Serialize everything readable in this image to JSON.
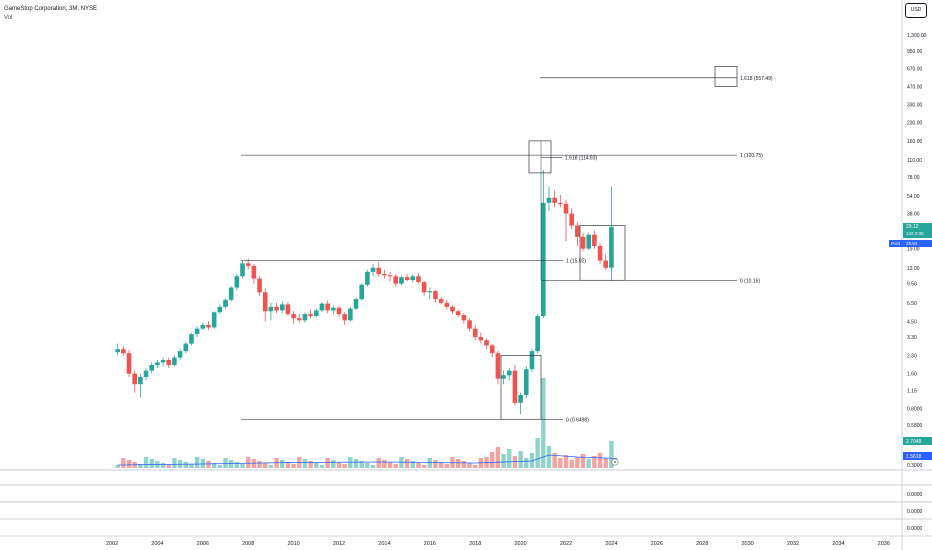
{
  "header": {
    "title": "GameStop Corporation, 3M, NYSE",
    "volume_label": "Vol",
    "currency": "USD"
  },
  "colors": {
    "up": "#26a69a",
    "down": "#ef5350",
    "up_volume": "#8fd3cc",
    "down_volume": "#f4a3a1",
    "volume_ma": "#2962ff",
    "drawing": "#131722",
    "grid": "#d1d4dc",
    "price_badge": "#26a69a",
    "post_badge": "#2962ff"
  },
  "chart_data": {
    "type": "candlestick",
    "scale": "log",
    "x_ticks": [
      "2002",
      "2004",
      "2006",
      "2008",
      "2010",
      "2012",
      "2014",
      "2016",
      "2018",
      "2020",
      "2022",
      "2024",
      "2026",
      "2028",
      "2030",
      "2032",
      "2034",
      "2036"
    ],
    "y_ticks": [
      "1,300.00",
      "950.00",
      "670.00",
      "470.00",
      "330.00",
      "230.00",
      "160.00",
      "110.00",
      "78.00",
      "54.00",
      "38.00",
      "27.00",
      "19.00",
      "13.00",
      "9.50",
      "6.50",
      "4.50",
      "3.30",
      "2.30",
      "1.60",
      "1.15",
      "0.8000",
      "0.5800"
    ],
    "volume_axis_ticks": [
      "0.3000"
    ],
    "indicator_axis_ticks": [
      "0.0000",
      "0.0000",
      "0.0000"
    ],
    "candles": [
      {
        "t": 2002.25,
        "o": 2.45,
        "h": 2.9,
        "l": 2.3,
        "c": 2.6
      },
      {
        "t": 2002.5,
        "o": 2.6,
        "h": 2.75,
        "l": 2.3,
        "c": 2.4
      },
      {
        "t": 2002.75,
        "o": 2.4,
        "h": 2.55,
        "l": 1.5,
        "c": 1.6
      },
      {
        "t": 2003.0,
        "o": 1.6,
        "h": 1.7,
        "l": 1.1,
        "c": 1.3
      },
      {
        "t": 2003.25,
        "o": 1.3,
        "h": 1.6,
        "l": 1.0,
        "c": 1.5
      },
      {
        "t": 2003.5,
        "o": 1.5,
        "h": 1.8,
        "l": 1.4,
        "c": 1.7
      },
      {
        "t": 2003.75,
        "o": 1.7,
        "h": 2.0,
        "l": 1.6,
        "c": 1.9
      },
      {
        "t": 2004.0,
        "o": 1.9,
        "h": 2.1,
        "l": 1.8,
        "c": 2.0
      },
      {
        "t": 2004.25,
        "o": 2.0,
        "h": 2.2,
        "l": 1.85,
        "c": 2.1
      },
      {
        "t": 2004.5,
        "o": 2.1,
        "h": 2.2,
        "l": 1.8,
        "c": 1.9
      },
      {
        "t": 2004.75,
        "o": 1.9,
        "h": 2.3,
        "l": 1.85,
        "c": 2.2
      },
      {
        "t": 2005.0,
        "o": 2.2,
        "h": 2.6,
        "l": 2.1,
        "c": 2.5
      },
      {
        "t": 2005.25,
        "o": 2.5,
        "h": 3.0,
        "l": 2.4,
        "c": 2.9
      },
      {
        "t": 2005.5,
        "o": 2.9,
        "h": 3.6,
        "l": 2.8,
        "c": 3.5
      },
      {
        "t": 2005.75,
        "o": 3.5,
        "h": 4.1,
        "l": 3.3,
        "c": 3.9
      },
      {
        "t": 2006.0,
        "o": 3.9,
        "h": 4.4,
        "l": 3.8,
        "c": 4.2
      },
      {
        "t": 2006.25,
        "o": 4.2,
        "h": 4.5,
        "l": 3.8,
        "c": 4.0
      },
      {
        "t": 2006.5,
        "o": 4.0,
        "h": 5.5,
        "l": 3.9,
        "c": 5.4
      },
      {
        "t": 2006.75,
        "o": 5.4,
        "h": 6.3,
        "l": 5.2,
        "c": 6.0
      },
      {
        "t": 2007.0,
        "o": 6.0,
        "h": 7.1,
        "l": 5.8,
        "c": 6.9
      },
      {
        "t": 2007.25,
        "o": 6.9,
        "h": 9.0,
        "l": 6.7,
        "c": 8.8
      },
      {
        "t": 2007.5,
        "o": 8.8,
        "h": 11.5,
        "l": 8.3,
        "c": 11.0
      },
      {
        "t": 2007.75,
        "o": 11.0,
        "h": 15.0,
        "l": 10.5,
        "c": 14.2
      },
      {
        "t": 2008.0,
        "o": 14.2,
        "h": 15.6,
        "l": 12.5,
        "c": 13.5
      },
      {
        "t": 2008.25,
        "o": 13.5,
        "h": 14.0,
        "l": 9.5,
        "c": 10.5
      },
      {
        "t": 2008.5,
        "o": 10.5,
        "h": 11.0,
        "l": 7.5,
        "c": 8.0
      },
      {
        "t": 2008.75,
        "o": 8.0,
        "h": 8.6,
        "l": 4.5,
        "c": 5.5
      },
      {
        "t": 2009.0,
        "o": 5.5,
        "h": 6.5,
        "l": 4.6,
        "c": 6.0
      },
      {
        "t": 2009.25,
        "o": 6.0,
        "h": 6.5,
        "l": 5.3,
        "c": 5.6
      },
      {
        "t": 2009.5,
        "o": 5.6,
        "h": 6.7,
        "l": 5.3,
        "c": 6.3
      },
      {
        "t": 2009.75,
        "o": 6.3,
        "h": 6.6,
        "l": 5.0,
        "c": 5.2
      },
      {
        "t": 2010.0,
        "o": 5.2,
        "h": 5.5,
        "l": 4.3,
        "c": 4.8
      },
      {
        "t": 2010.25,
        "o": 4.8,
        "h": 5.2,
        "l": 4.4,
        "c": 4.6
      },
      {
        "t": 2010.5,
        "o": 4.6,
        "h": 5.4,
        "l": 4.4,
        "c": 5.2
      },
      {
        "t": 2010.75,
        "o": 5.2,
        "h": 5.7,
        "l": 4.8,
        "c": 5.0
      },
      {
        "t": 2011.0,
        "o": 5.0,
        "h": 5.8,
        "l": 4.9,
        "c": 5.6
      },
      {
        "t": 2011.25,
        "o": 5.6,
        "h": 6.6,
        "l": 5.4,
        "c": 6.4
      },
      {
        "t": 2011.5,
        "o": 6.4,
        "h": 6.8,
        "l": 5.3,
        "c": 5.6
      },
      {
        "t": 2011.75,
        "o": 5.6,
        "h": 6.2,
        "l": 5.2,
        "c": 5.9
      },
      {
        "t": 2012.0,
        "o": 5.9,
        "h": 6.1,
        "l": 5.0,
        "c": 5.2
      },
      {
        "t": 2012.25,
        "o": 5.2,
        "h": 5.4,
        "l": 4.2,
        "c": 4.6
      },
      {
        "t": 2012.5,
        "o": 4.6,
        "h": 6.0,
        "l": 4.5,
        "c": 5.8
      },
      {
        "t": 2012.75,
        "o": 5.8,
        "h": 7.2,
        "l": 5.6,
        "c": 7.0
      },
      {
        "t": 2013.0,
        "o": 7.0,
        "h": 9.5,
        "l": 6.8,
        "c": 9.3
      },
      {
        "t": 2013.25,
        "o": 9.3,
        "h": 12.5,
        "l": 9.0,
        "c": 12.0
      },
      {
        "t": 2013.5,
        "o": 12.0,
        "h": 14.0,
        "l": 11.0,
        "c": 13.0
      },
      {
        "t": 2013.75,
        "o": 13.0,
        "h": 14.5,
        "l": 11.0,
        "c": 11.5
      },
      {
        "t": 2014.0,
        "o": 11.5,
        "h": 12.5,
        "l": 10.5,
        "c": 11.2
      },
      {
        "t": 2014.25,
        "o": 11.2,
        "h": 12.0,
        "l": 10.0,
        "c": 11.0
      },
      {
        "t": 2014.5,
        "o": 11.0,
        "h": 11.5,
        "l": 9.0,
        "c": 9.5
      },
      {
        "t": 2014.75,
        "o": 9.5,
        "h": 11.2,
        "l": 9.2,
        "c": 10.8
      },
      {
        "t": 2015.0,
        "o": 10.8,
        "h": 11.5,
        "l": 10.0,
        "c": 10.2
      },
      {
        "t": 2015.25,
        "o": 10.2,
        "h": 11.4,
        "l": 9.8,
        "c": 11.0
      },
      {
        "t": 2015.5,
        "o": 11.0,
        "h": 11.6,
        "l": 9.5,
        "c": 9.8
      },
      {
        "t": 2015.75,
        "o": 9.8,
        "h": 10.0,
        "l": 7.5,
        "c": 8.0
      },
      {
        "t": 2016.0,
        "o": 8.0,
        "h": 8.8,
        "l": 7.0,
        "c": 8.2
      },
      {
        "t": 2016.25,
        "o": 8.2,
        "h": 8.4,
        "l": 6.6,
        "c": 7.0
      },
      {
        "t": 2016.5,
        "o": 7.0,
        "h": 7.3,
        "l": 6.3,
        "c": 6.5
      },
      {
        "t": 2016.75,
        "o": 6.5,
        "h": 6.9,
        "l": 5.7,
        "c": 6.0
      },
      {
        "t": 2017.0,
        "o": 6.0,
        "h": 6.2,
        "l": 5.2,
        "c": 5.5
      },
      {
        "t": 2017.25,
        "o": 5.5,
        "h": 5.7,
        "l": 4.9,
        "c": 5.1
      },
      {
        "t": 2017.5,
        "o": 5.1,
        "h": 5.3,
        "l": 4.3,
        "c": 4.6
      },
      {
        "t": 2017.75,
        "o": 4.6,
        "h": 4.8,
        "l": 3.7,
        "c": 3.9
      },
      {
        "t": 2018.0,
        "o": 3.9,
        "h": 4.2,
        "l": 3.1,
        "c": 3.3
      },
      {
        "t": 2018.25,
        "o": 3.3,
        "h": 3.6,
        "l": 2.9,
        "c": 3.1
      },
      {
        "t": 2018.5,
        "o": 3.1,
        "h": 3.2,
        "l": 2.6,
        "c": 2.8
      },
      {
        "t": 2018.75,
        "o": 2.8,
        "h": 2.9,
        "l": 2.2,
        "c": 2.4
      },
      {
        "t": 2019.0,
        "o": 2.4,
        "h": 2.5,
        "l": 1.3,
        "c": 1.45
      },
      {
        "t": 2019.25,
        "o": 1.45,
        "h": 1.7,
        "l": 1.3,
        "c": 1.55
      },
      {
        "t": 2019.5,
        "o": 1.55,
        "h": 1.8,
        "l": 1.4,
        "c": 1.7
      },
      {
        "t": 2019.75,
        "o": 1.7,
        "h": 1.9,
        "l": 0.85,
        "c": 0.9
      },
      {
        "t": 2020.0,
        "o": 0.9,
        "h": 1.1,
        "l": 0.72,
        "c": 1.05
      },
      {
        "t": 2020.25,
        "o": 1.05,
        "h": 1.85,
        "l": 0.98,
        "c": 1.75
      },
      {
        "t": 2020.5,
        "o": 1.75,
        "h": 2.6,
        "l": 1.65,
        "c": 2.5
      },
      {
        "t": 2020.75,
        "o": 2.5,
        "h": 5.2,
        "l": 2.4,
        "c": 5.0
      },
      {
        "t": 2021.0,
        "o": 5.0,
        "h": 90.0,
        "l": 4.8,
        "c": 47.0
      },
      {
        "t": 2021.25,
        "o": 47.0,
        "h": 65.0,
        "l": 40.0,
        "c": 52.0
      },
      {
        "t": 2021.5,
        "o": 52.0,
        "h": 60.0,
        "l": 43.0,
        "c": 47.0
      },
      {
        "t": 2021.75,
        "o": 47.0,
        "h": 55.0,
        "l": 43.0,
        "c": 46.0
      },
      {
        "t": 2022.0,
        "o": 46.0,
        "h": 50.0,
        "l": 22.0,
        "c": 38.0
      },
      {
        "t": 2022.25,
        "o": 38.0,
        "h": 42.0,
        "l": 28.0,
        "c": 30.0
      },
      {
        "t": 2022.5,
        "o": 30.0,
        "h": 32.0,
        "l": 20.0,
        "c": 24.0
      },
      {
        "t": 2022.75,
        "o": 24.0,
        "h": 26.0,
        "l": 18.0,
        "c": 19.0
      },
      {
        "t": 2023.0,
        "o": 19.0,
        "h": 26.0,
        "l": 18.5,
        "c": 25.0
      },
      {
        "t": 2023.25,
        "o": 25.0,
        "h": 27.0,
        "l": 19.0,
        "c": 20.0
      },
      {
        "t": 2023.5,
        "o": 20.0,
        "h": 21.0,
        "l": 14.0,
        "c": 15.0
      },
      {
        "t": 2023.75,
        "o": 15.0,
        "h": 17.0,
        "l": 12.5,
        "c": 13.0
      },
      {
        "t": 2024.0,
        "o": 13.0,
        "h": 64.8,
        "l": 10.0,
        "c": 29.12
      }
    ],
    "volume_ma_points": [
      [
        2002.25,
        0.3
      ],
      [
        2006,
        0.4
      ],
      [
        2010,
        0.55
      ],
      [
        2014,
        0.6
      ],
      [
        2018,
        0.5
      ],
      [
        2020.5,
        0.7
      ],
      [
        2021.25,
        1.3
      ],
      [
        2022.5,
        1.1
      ],
      [
        2024.25,
        0.95
      ]
    ],
    "drawings": [
      {
        "kind": "fib",
        "label": "1 (120.75)",
        "price": 120.75
      },
      {
        "kind": "fib",
        "label": "1.618 (114.93)",
        "price": 114.93
      },
      {
        "kind": "fib",
        "label": "1.618 (557.49)",
        "price": 557.49
      },
      {
        "kind": "fib",
        "label": "1 (15.02)",
        "price": 15.02
      },
      {
        "kind": "fib",
        "label": "0 (10.16)",
        "price": 10.16
      },
      {
        "kind": "fib",
        "label": "0 (0.6498)",
        "price": 0.6498
      }
    ],
    "price_badges": {
      "last": "29.12",
      "last_sub": "142 2:30",
      "post_label": "Post",
      "post_value": "28.94",
      "volume_last": "2.7048",
      "volume_ma": "1.5618"
    }
  }
}
